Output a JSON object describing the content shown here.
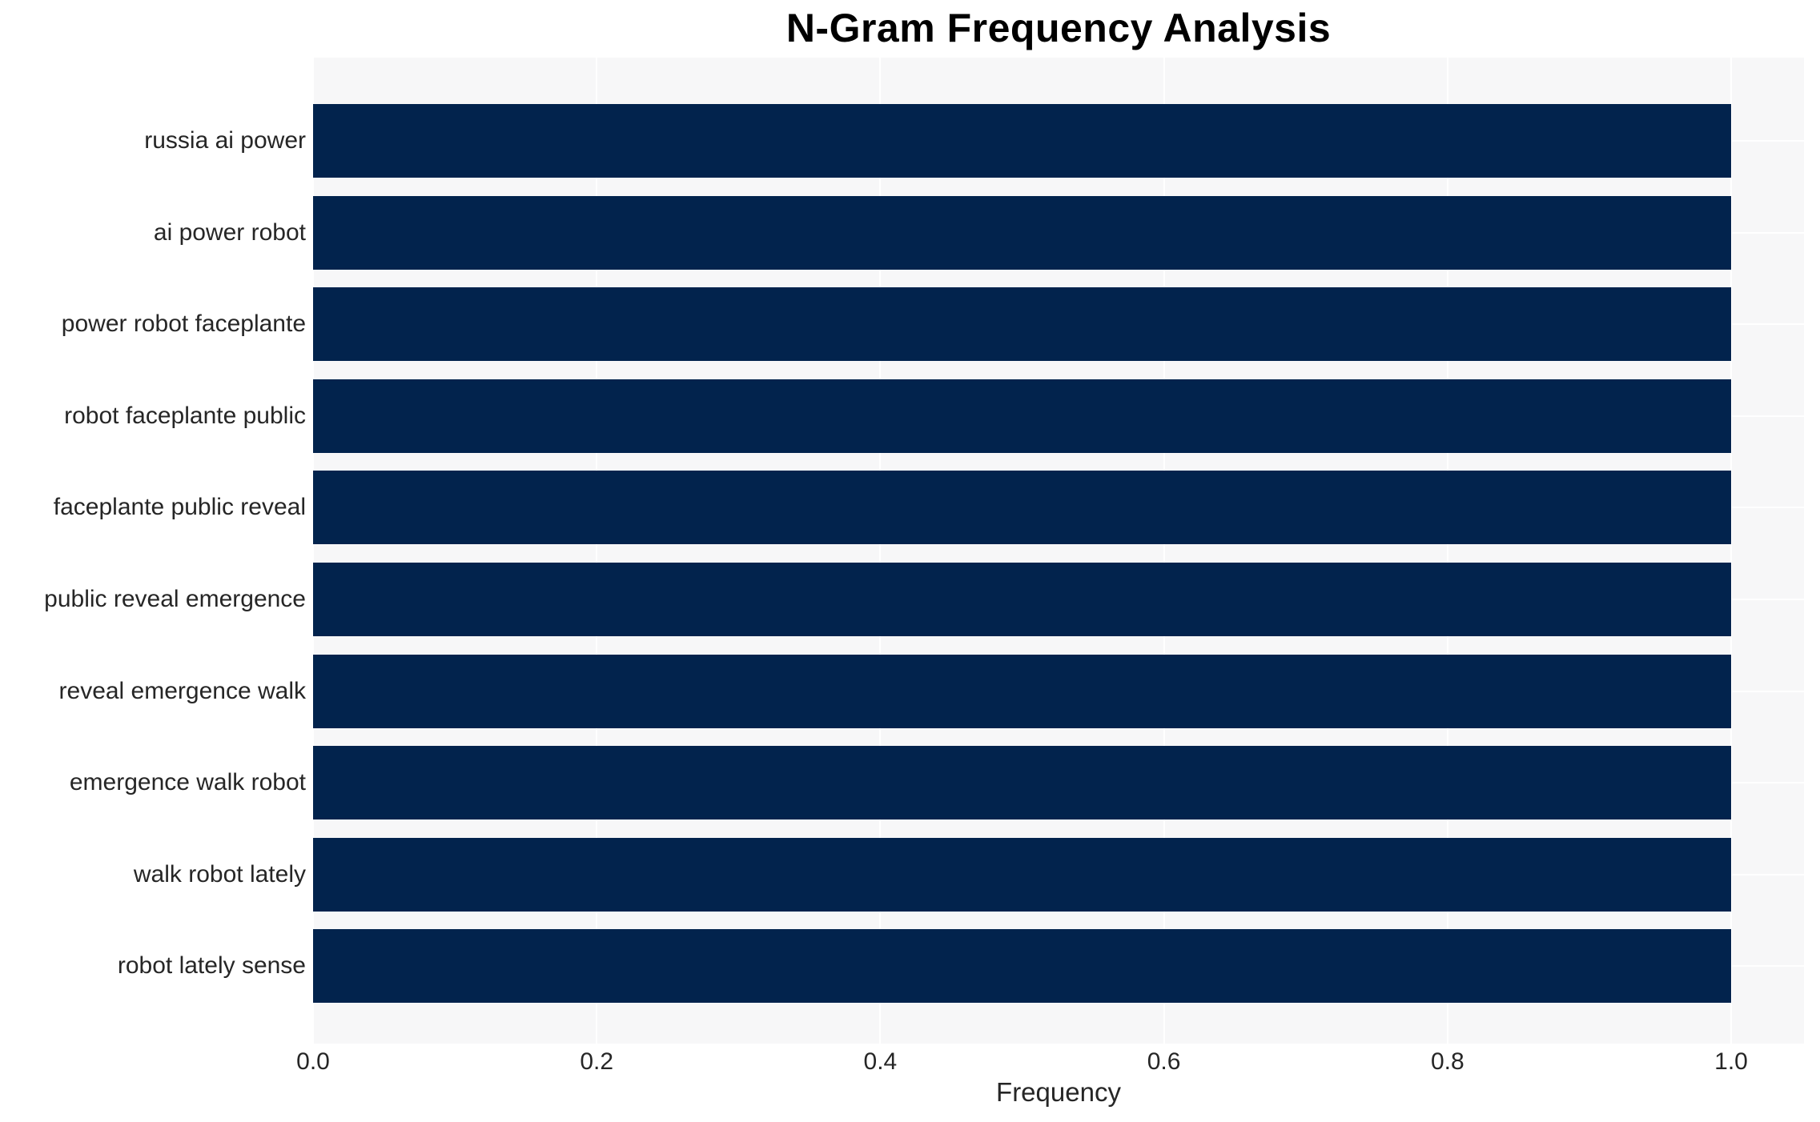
{
  "chart_data": {
    "type": "bar",
    "orientation": "horizontal",
    "title": "N-Gram Frequency Analysis",
    "xlabel": "Frequency",
    "ylabel": "",
    "categories": [
      "russia ai power",
      "ai power robot",
      "power robot faceplante",
      "robot faceplante public",
      "faceplante public reveal",
      "public reveal emergence",
      "reveal emergence walk",
      "emergence walk robot",
      "walk robot lately",
      "robot lately sense"
    ],
    "values": [
      1.0,
      1.0,
      1.0,
      1.0,
      1.0,
      1.0,
      1.0,
      1.0,
      1.0,
      1.0
    ],
    "xlim": [
      0,
      1.05
    ],
    "xticks": [
      0.0,
      0.2,
      0.4,
      0.6,
      0.8,
      1.0
    ],
    "xtick_labels": [
      "0.0",
      "0.2",
      "0.4",
      "0.6",
      "0.8",
      "1.0"
    ],
    "grid": true,
    "legend": false,
    "colors": {
      "bar": "#02234d",
      "plot_background": "#f7f7f8",
      "page_background": "#ffffff",
      "gridline": "#ffffff",
      "text": "#262626",
      "title": "#000000"
    }
  }
}
